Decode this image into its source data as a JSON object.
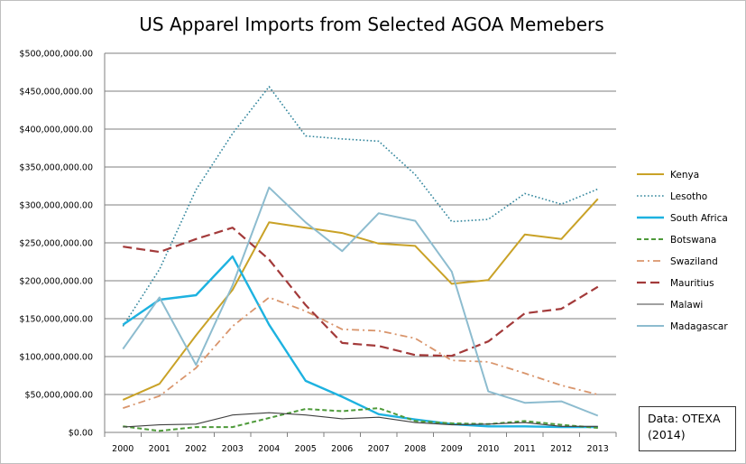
{
  "chart_data": {
    "type": "line",
    "title": "US Apparel Imports from Selected AGOA Memebers",
    "xlabel": "",
    "ylabel": "",
    "categories": [
      "2000",
      "2001",
      "2002",
      "2003",
      "2004",
      "2005",
      "2006",
      "2007",
      "2008",
      "2009",
      "2010",
      "2011",
      "2012",
      "2013"
    ],
    "ylim": [
      0,
      500000000
    ],
    "y_ticks": [
      "$0.00",
      "$50,000,000.00",
      "$100,000,000.00",
      "$150,000,000.00",
      "$200,000,000.00",
      "$250,000,000.00",
      "$300,000,000.00",
      "$350,000,000.00",
      "$400,000,000.00",
      "$450,000,000.00",
      "$500,000,000.00"
    ],
    "grid": "horizontal",
    "legend_position": "right",
    "series": [
      {
        "name": "Kenya",
        "color": "#C9A227",
        "style": "solid",
        "values": [
          43000000,
          64000000,
          128000000,
          188000000,
          277000000,
          270000000,
          263000000,
          249000000,
          246000000,
          196000000,
          201000000,
          261000000,
          255000000,
          308000000
        ]
      },
      {
        "name": "Lesotho",
        "color": "#31859C",
        "style": "dotted",
        "values": [
          140000000,
          215000000,
          320000000,
          394000000,
          456000000,
          391000000,
          387000000,
          384000000,
          340000000,
          278000000,
          281000000,
          315000000,
          301000000,
          321000000
        ]
      },
      {
        "name": "South Africa",
        "color": "#1DB2E0",
        "style": "solid-thick",
        "values": [
          142000000,
          175000000,
          181000000,
          232000000,
          142000000,
          68000000,
          47000000,
          24000000,
          17000000,
          11000000,
          8000000,
          8000000,
          7000000,
          7000000
        ]
      },
      {
        "name": "Botswana",
        "color": "#4E9A3A",
        "style": "dashed",
        "values": [
          8000000,
          2000000,
          7000000,
          7000000,
          19000000,
          31000000,
          28000000,
          32000000,
          15000000,
          12000000,
          11000000,
          15000000,
          10000000,
          6000000
        ]
      },
      {
        "name": "Swaziland",
        "color": "#D9956C",
        "style": "dash-dot",
        "values": [
          32000000,
          48000000,
          85000000,
          140000000,
          178000000,
          160000000,
          136000000,
          134000000,
          124000000,
          95000000,
          93000000,
          78000000,
          62000000,
          50000000
        ]
      },
      {
        "name": "Mauritius",
        "color": "#A33A3A",
        "style": "long-dash",
        "values": [
          245000000,
          238000000,
          255000000,
          270000000,
          228000000,
          168000000,
          118000000,
          114000000,
          102000000,
          101000000,
          120000000,
          157000000,
          163000000,
          192000000
        ]
      },
      {
        "name": "Malawi",
        "color": "#404040",
        "style": "solid-thin",
        "values": [
          7000000,
          10000000,
          11000000,
          23000000,
          26000000,
          23000000,
          18000000,
          20000000,
          13000000,
          10000000,
          11000000,
          13000000,
          8000000,
          8000000
        ]
      },
      {
        "name": "Madagascar",
        "color": "#8DBCCF",
        "style": "solid",
        "values": [
          110000000,
          178000000,
          89000000,
          194000000,
          323000000,
          277000000,
          239000000,
          289000000,
          279000000,
          212000000,
          54000000,
          39000000,
          41000000,
          22000000
        ]
      }
    ]
  },
  "source_note": {
    "line1": "Data: OTEXA",
    "line2": "(2014)"
  }
}
